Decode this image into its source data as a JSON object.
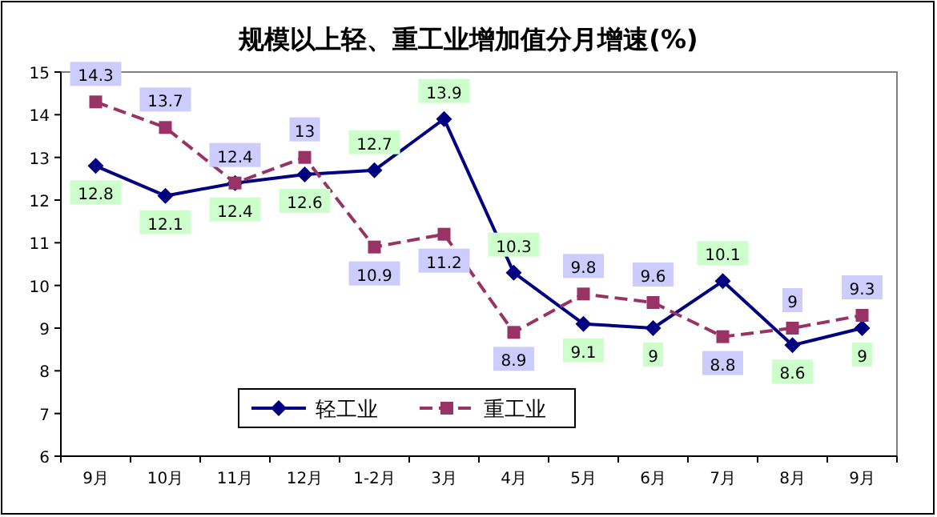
{
  "chart_data": {
    "type": "line",
    "title": "规模以上轻、重工业增加值分月增速(%)",
    "categories": [
      "9月",
      "10月",
      "11月",
      "12月",
      "1-2月",
      "3月",
      "4月",
      "5月",
      "6月",
      "7月",
      "8月",
      "9月"
    ],
    "series": [
      {
        "name": "轻工业",
        "color": "#000080",
        "marker": "diamond",
        "line_style": "solid",
        "values": [
          12.8,
          12.1,
          12.4,
          12.6,
          12.7,
          13.9,
          10.3,
          9.1,
          9,
          10.1,
          8.6,
          9
        ]
      },
      {
        "name": "重工业",
        "color": "#993366",
        "marker": "square",
        "line_style": "dashed",
        "values": [
          14.3,
          13.7,
          12.4,
          13,
          10.9,
          11.2,
          8.9,
          9.8,
          9.6,
          8.8,
          9,
          9.3
        ]
      }
    ],
    "ylim": [
      6,
      15
    ],
    "yticks": [
      6,
      7,
      8,
      9,
      10,
      11,
      12,
      13,
      14,
      15
    ],
    "grid": false,
    "legend": "bottom",
    "data_labels": true
  }
}
